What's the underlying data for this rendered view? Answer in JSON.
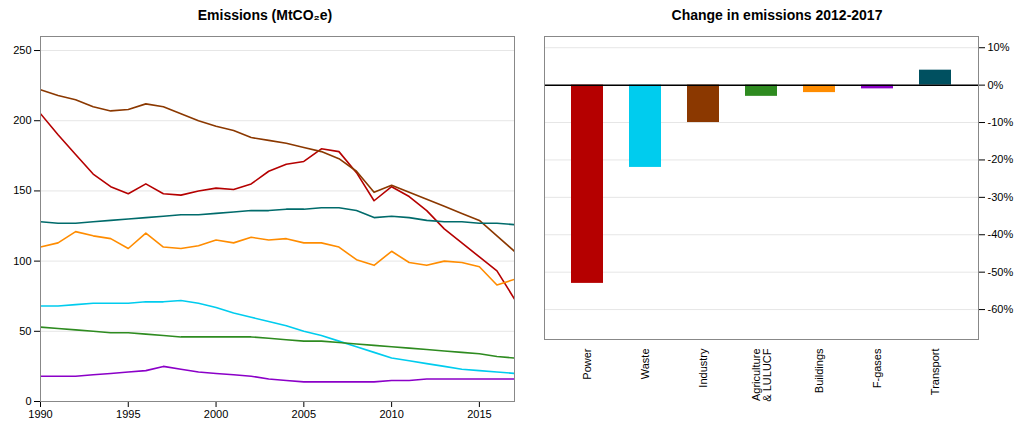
{
  "chart_data": [
    {
      "type": "line",
      "title": "Emissions (MtCO₂e)",
      "x": [
        1990,
        1991,
        1992,
        1993,
        1994,
        1995,
        1996,
        1997,
        1998,
        1999,
        2000,
        2001,
        2002,
        2003,
        2004,
        2005,
        2006,
        2007,
        2008,
        2009,
        2010,
        2011,
        2012,
        2013,
        2014,
        2015,
        2016,
        2017
      ],
      "series": [
        {
          "color": "#b50000",
          "values": [
            205,
            190,
            176,
            162,
            153,
            148,
            155,
            148,
            147,
            150,
            152,
            151,
            155,
            164,
            169,
            171,
            180,
            178,
            163,
            143,
            153,
            146,
            136,
            123,
            113,
            103,
            93,
            73
          ]
        },
        {
          "color": "#8B3800",
          "values": [
            222,
            218,
            215,
            210,
            207,
            208,
            212,
            210,
            205,
            200,
            196,
            193,
            188,
            186,
            184,
            181,
            178,
            173,
            164,
            149,
            154,
            149,
            144,
            139,
            134,
            129,
            118,
            107
          ]
        },
        {
          "color": "#006b6b",
          "values": [
            128,
            127,
            127,
            128,
            129,
            130,
            131,
            132,
            133,
            133,
            134,
            135,
            136,
            136,
            137,
            137,
            138,
            138,
            136,
            131,
            132,
            131,
            129,
            128,
            128,
            127,
            127,
            126
          ]
        },
        {
          "color": "#FF8C00",
          "values": [
            110,
            113,
            121,
            118,
            116,
            109,
            120,
            110,
            109,
            111,
            115,
            113,
            117,
            115,
            116,
            113,
            113,
            110,
            101,
            97,
            107,
            99,
            97,
            100,
            99,
            96,
            83,
            87
          ]
        },
        {
          "color": "#00CCEE",
          "values": [
            68,
            68,
            69,
            70,
            70,
            70,
            71,
            71,
            72,
            70,
            67,
            63,
            60,
            57,
            54,
            50,
            47,
            43,
            39,
            35,
            31,
            29,
            27,
            25,
            23,
            22,
            21,
            20
          ]
        },
        {
          "color": "#2E8B20",
          "values": [
            53,
            52,
            51,
            50,
            49,
            49,
            48,
            47,
            46,
            46,
            46,
            46,
            46,
            45,
            44,
            43,
            43,
            42,
            41,
            40,
            39,
            38,
            37,
            36,
            35,
            34,
            32,
            31
          ]
        },
        {
          "color": "#8B00C8",
          "values": [
            18,
            18,
            18,
            19,
            20,
            21,
            22,
            25,
            23,
            21,
            20,
            19,
            18,
            16,
            15,
            14,
            14,
            14,
            14,
            14,
            15,
            15,
            16,
            16,
            16,
            16,
            16,
            16
          ]
        }
      ],
      "xlim": [
        1990,
        2017
      ],
      "xticks": [
        1990,
        1995,
        2000,
        2005,
        2010,
        2015
      ],
      "ylim": [
        0,
        260
      ],
      "yticks": [
        0,
        50,
        100,
        150,
        200,
        250
      ],
      "grid": true
    },
    {
      "type": "bar",
      "title": "Change in emissions 2012-2017",
      "categories": [
        "Power",
        "Waste",
        "Industry",
        "Agriculture\n& LULUCF",
        "Buildings",
        "F-gases",
        "Transport"
      ],
      "values": [
        -0.53,
        -0.22,
        -0.1,
        -0.03,
        -0.02,
        -0.01,
        0.04
      ],
      "colors": [
        "#b50000",
        "#00CCEE",
        "#8B3800",
        "#2E8B20",
        "#FF8C00",
        "#8B00C8",
        "#005060"
      ],
      "ylim": [
        -0.68,
        0.13
      ],
      "yticks": [
        {
          "value": 0.1,
          "label": "10%"
        },
        {
          "value": 0.0,
          "label": "0%"
        },
        {
          "value": -0.1,
          "label": "-10%"
        },
        {
          "value": -0.2,
          "label": "-20%"
        },
        {
          "value": -0.3,
          "label": "-30%"
        },
        {
          "value": -0.4,
          "label": "-40%"
        },
        {
          "value": -0.5,
          "label": "-50%"
        },
        {
          "value": -0.6,
          "label": "-60%"
        }
      ],
      "grid": true
    }
  ]
}
